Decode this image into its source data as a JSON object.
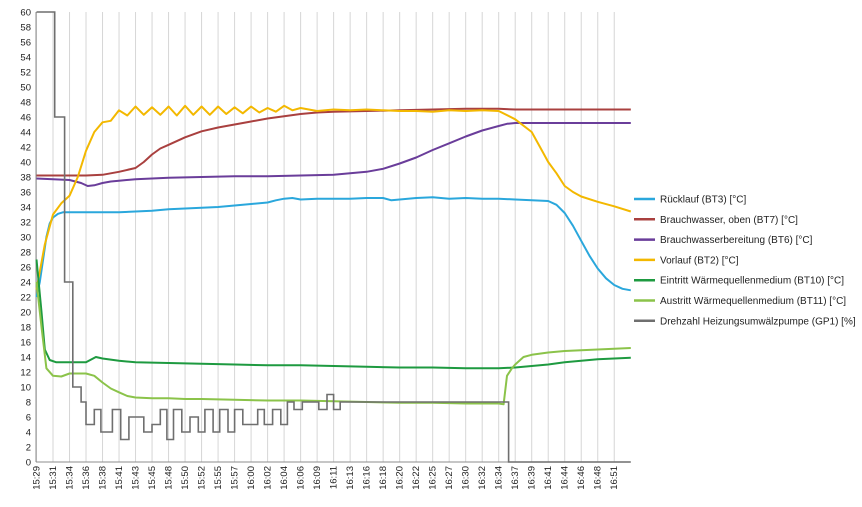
{
  "chart_data": {
    "type": "line",
    "title": "",
    "xlabel": "",
    "ylabel": "",
    "ylim": [
      0,
      60
    ],
    "y_ticks": [
      0,
      2,
      4,
      6,
      8,
      10,
      12,
      14,
      16,
      18,
      20,
      22,
      24,
      26,
      28,
      30,
      32,
      34,
      36,
      38,
      40,
      42,
      44,
      46,
      48,
      50,
      52,
      54,
      56,
      58,
      60
    ],
    "grid": "vertical",
    "legend_position": "right",
    "x_tick_labels": [
      "15:29",
      "15:31",
      "15:34",
      "15:36",
      "15:38",
      "15:41",
      "15:43",
      "15:45",
      "15:48",
      "15:50",
      "15:52",
      "15:55",
      "15:57",
      "16:00",
      "16:02",
      "16:04",
      "16:06",
      "16:09",
      "16:11",
      "16:13",
      "16:16",
      "16:18",
      "16:20",
      "16:22",
      "16:25",
      "16:27",
      "16:30",
      "16:32",
      "16:34",
      "16:37",
      "16:39",
      "16:41",
      "16:44",
      "16:46",
      "16:48",
      "16:51"
    ],
    "series": [
      {
        "name": "Rücklauf (BT3) [°C]",
        "color": "#2aa7dc",
        "points": [
          [
            0,
            22
          ],
          [
            0.2,
            24
          ],
          [
            0.4,
            27
          ],
          [
            0.6,
            30
          ],
          [
            0.8,
            31.8
          ],
          [
            1,
            32.6
          ],
          [
            1.3,
            33.1
          ],
          [
            1.6,
            33.3
          ],
          [
            2,
            33.3
          ],
          [
            3,
            33.3
          ],
          [
            4,
            33.3
          ],
          [
            5,
            33.3
          ],
          [
            6,
            33.4
          ],
          [
            7,
            33.5
          ],
          [
            8,
            33.7
          ],
          [
            9,
            33.8
          ],
          [
            10,
            33.9
          ],
          [
            11,
            34
          ],
          [
            12,
            34.2
          ],
          [
            13,
            34.4
          ],
          [
            14,
            34.6
          ],
          [
            14.5,
            34.9
          ],
          [
            15,
            35.1
          ],
          [
            15.5,
            35.2
          ],
          [
            16,
            35
          ],
          [
            17,
            35.1
          ],
          [
            18,
            35.1
          ],
          [
            19,
            35.1
          ],
          [
            20,
            35.2
          ],
          [
            21,
            35.2
          ],
          [
            21.5,
            34.9
          ],
          [
            22,
            35
          ],
          [
            23,
            35.2
          ],
          [
            24,
            35.3
          ],
          [
            25,
            35.1
          ],
          [
            26,
            35.2
          ],
          [
            27,
            35.1
          ],
          [
            28,
            35.1
          ],
          [
            29,
            35
          ],
          [
            30,
            34.9
          ],
          [
            31,
            34.8
          ],
          [
            31.5,
            34.3
          ],
          [
            32,
            33.2
          ],
          [
            32.5,
            31.5
          ],
          [
            33,
            29.5
          ],
          [
            33.5,
            27.5
          ],
          [
            34,
            25.8
          ],
          [
            34.5,
            24.5
          ],
          [
            35,
            23.6
          ],
          [
            35.5,
            23.1
          ],
          [
            36,
            22.9
          ]
        ]
      },
      {
        "name": "Brauchwasser, oben (BT7) [°C]",
        "color": "#a9403f",
        "points": [
          [
            0,
            38.2
          ],
          [
            2,
            38.2
          ],
          [
            3,
            38.2
          ],
          [
            4,
            38.3
          ],
          [
            5,
            38.7
          ],
          [
            6,
            39.2
          ],
          [
            6.5,
            40
          ],
          [
            7,
            41
          ],
          [
            7.5,
            41.8
          ],
          [
            8,
            42.3
          ],
          [
            9,
            43.3
          ],
          [
            10,
            44.1
          ],
          [
            11,
            44.6
          ],
          [
            12,
            45
          ],
          [
            13,
            45.4
          ],
          [
            14,
            45.8
          ],
          [
            15,
            46.1
          ],
          [
            16,
            46.4
          ],
          [
            17,
            46.6
          ],
          [
            18,
            46.7
          ],
          [
            20,
            46.8
          ],
          [
            22,
            46.9
          ],
          [
            24,
            47
          ],
          [
            26,
            47.1
          ],
          [
            27,
            47.1
          ],
          [
            28,
            47.1
          ],
          [
            29,
            47
          ],
          [
            36,
            47
          ]
        ]
      },
      {
        "name": "Brauchwasserbereitung (BT6) [°C]",
        "color": "#6a3d9a",
        "points": [
          [
            0,
            37.8
          ],
          [
            1,
            37.7
          ],
          [
            2,
            37.6
          ],
          [
            2.7,
            37.2
          ],
          [
            3.1,
            36.8
          ],
          [
            3.5,
            36.9
          ],
          [
            4,
            37.2
          ],
          [
            4.5,
            37.4
          ],
          [
            5,
            37.5
          ],
          [
            6,
            37.7
          ],
          [
            7,
            37.8
          ],
          [
            8,
            37.9
          ],
          [
            10,
            38
          ],
          [
            12,
            38.1
          ],
          [
            14,
            38.1
          ],
          [
            16,
            38.2
          ],
          [
            18,
            38.3
          ],
          [
            19,
            38.5
          ],
          [
            20,
            38.7
          ],
          [
            21,
            39.1
          ],
          [
            22,
            39.8
          ],
          [
            23,
            40.6
          ],
          [
            24,
            41.6
          ],
          [
            25,
            42.5
          ],
          [
            26,
            43.4
          ],
          [
            27,
            44.2
          ],
          [
            28,
            44.8
          ],
          [
            28.5,
            45.1
          ],
          [
            29,
            45.2
          ],
          [
            30,
            45.2
          ],
          [
            36,
            45.2
          ]
        ]
      },
      {
        "name": "Vorlauf (BT2) [°C]",
        "color": "#f3b800",
        "points": [
          [
            0,
            23
          ],
          [
            0.5,
            29
          ],
          [
            1,
            33
          ],
          [
            1.5,
            34.5
          ],
          [
            2,
            35.5
          ],
          [
            2.5,
            38
          ],
          [
            3,
            41.5
          ],
          [
            3.5,
            44
          ],
          [
            4,
            45.3
          ],
          [
            4.5,
            45.5
          ],
          [
            5,
            46.9
          ],
          [
            5.5,
            46.2
          ],
          [
            6,
            47.4
          ],
          [
            6.5,
            46.3
          ],
          [
            7,
            47.3
          ],
          [
            7.5,
            46.3
          ],
          [
            8,
            47.4
          ],
          [
            8.5,
            46.2
          ],
          [
            9,
            47.5
          ],
          [
            9.5,
            46.3
          ],
          [
            10,
            47.4
          ],
          [
            10.5,
            46.3
          ],
          [
            11,
            47.4
          ],
          [
            11.5,
            46.4
          ],
          [
            12,
            47.3
          ],
          [
            12.5,
            46.5
          ],
          [
            13,
            47.4
          ],
          [
            13.5,
            46.6
          ],
          [
            14,
            47.2
          ],
          [
            14.5,
            46.7
          ],
          [
            15,
            47.5
          ],
          [
            15.5,
            46.9
          ],
          [
            16,
            47.2
          ],
          [
            17,
            46.8
          ],
          [
            18,
            47
          ],
          [
            19,
            46.9
          ],
          [
            20,
            47
          ],
          [
            21,
            46.9
          ],
          [
            22,
            46.8
          ],
          [
            23,
            46.8
          ],
          [
            24,
            46.7
          ],
          [
            25,
            46.9
          ],
          [
            26,
            46.8
          ],
          [
            27,
            46.9
          ],
          [
            28,
            46.8
          ],
          [
            29,
            45.7
          ],
          [
            30,
            44
          ],
          [
            30.5,
            42
          ],
          [
            31,
            40
          ],
          [
            31.5,
            38.5
          ],
          [
            32,
            36.8
          ],
          [
            32.5,
            36
          ],
          [
            33,
            35.4
          ],
          [
            34,
            34.7
          ],
          [
            35,
            34.1
          ],
          [
            36,
            33.4
          ]
        ]
      },
      {
        "name": "Eintritt Wärmequellenmedium (BT10) [°C]",
        "color": "#1e9a40",
        "points": [
          [
            0,
            27
          ],
          [
            0.3,
            20
          ],
          [
            0.5,
            15
          ],
          [
            0.8,
            13.6
          ],
          [
            1.2,
            13.3
          ],
          [
            2,
            13.3
          ],
          [
            3,
            13.3
          ],
          [
            3.6,
            14
          ],
          [
            4,
            13.8
          ],
          [
            5,
            13.5
          ],
          [
            6,
            13.3
          ],
          [
            8,
            13.2
          ],
          [
            10,
            13.1
          ],
          [
            12,
            13
          ],
          [
            14,
            12.9
          ],
          [
            16,
            12.9
          ],
          [
            18,
            12.8
          ],
          [
            20,
            12.7
          ],
          [
            22,
            12.6
          ],
          [
            24,
            12.6
          ],
          [
            26,
            12.5
          ],
          [
            28,
            12.5
          ],
          [
            29,
            12.6
          ],
          [
            30,
            12.8
          ],
          [
            31,
            13
          ],
          [
            32,
            13.3
          ],
          [
            33,
            13.5
          ],
          [
            34,
            13.7
          ],
          [
            35,
            13.8
          ],
          [
            36,
            13.9
          ]
        ]
      },
      {
        "name": "Austritt Wärmequellenmedium (BT11) [°C]",
        "color": "#8bc34a",
        "points": [
          [
            0,
            24
          ],
          [
            0.3,
            18
          ],
          [
            0.6,
            12.5
          ],
          [
            1,
            11.5
          ],
          [
            1.5,
            11.4
          ],
          [
            2,
            11.8
          ],
          [
            3,
            11.8
          ],
          [
            3.5,
            11.5
          ],
          [
            4,
            10.6
          ],
          [
            4.5,
            9.8
          ],
          [
            5,
            9.3
          ],
          [
            5.5,
            8.8
          ],
          [
            6,
            8.6
          ],
          [
            7,
            8.5
          ],
          [
            8,
            8.5
          ],
          [
            9,
            8.4
          ],
          [
            10,
            8.4
          ],
          [
            12,
            8.3
          ],
          [
            14,
            8.2
          ],
          [
            16,
            8.2
          ],
          [
            18,
            8.1
          ],
          [
            20,
            8
          ],
          [
            22,
            7.9
          ],
          [
            24,
            7.9
          ],
          [
            26,
            7.8
          ],
          [
            28,
            7.8
          ],
          [
            28.3,
            7.7
          ],
          [
            28.5,
            11.5
          ],
          [
            28.8,
            12.5
          ],
          [
            29,
            13
          ],
          [
            29.5,
            14
          ],
          [
            30,
            14.3
          ],
          [
            31,
            14.6
          ],
          [
            32,
            14.8
          ],
          [
            33,
            14.9
          ],
          [
            34,
            15
          ],
          [
            35,
            15.1
          ],
          [
            36,
            15.2
          ]
        ]
      },
      {
        "name": "Drehzahl Heizungsumwälzpumpe (GP1) [%]",
        "color": "#6f6f6f",
        "step": true,
        "points": [
          [
            0,
            60
          ],
          [
            1.1,
            60
          ],
          [
            1.1,
            46
          ],
          [
            1.7,
            46
          ],
          [
            1.7,
            24
          ],
          [
            2.2,
            24
          ],
          [
            2.2,
            10
          ],
          [
            2.7,
            10
          ],
          [
            2.7,
            8
          ],
          [
            3,
            8
          ],
          [
            3,
            5
          ],
          [
            3.5,
            5
          ],
          [
            3.5,
            7
          ],
          [
            3.9,
            7
          ],
          [
            3.9,
            4
          ],
          [
            4.6,
            4
          ],
          [
            4.6,
            7
          ],
          [
            5.1,
            7
          ],
          [
            5.1,
            3
          ],
          [
            5.6,
            3
          ],
          [
            5.6,
            6
          ],
          [
            6.5,
            6
          ],
          [
            6.5,
            4
          ],
          [
            7,
            4
          ],
          [
            7,
            5
          ],
          [
            7.5,
            5
          ],
          [
            7.5,
            7
          ],
          [
            7.9,
            7
          ],
          [
            7.9,
            3
          ],
          [
            8.3,
            3
          ],
          [
            8.3,
            7
          ],
          [
            8.8,
            7
          ],
          [
            8.8,
            4
          ],
          [
            9.3,
            4
          ],
          [
            9.3,
            6
          ],
          [
            9.8,
            6
          ],
          [
            9.8,
            4
          ],
          [
            10.2,
            4
          ],
          [
            10.2,
            7
          ],
          [
            10.7,
            7
          ],
          [
            10.7,
            4
          ],
          [
            11.1,
            4
          ],
          [
            11.1,
            7
          ],
          [
            11.6,
            7
          ],
          [
            11.6,
            4
          ],
          [
            12,
            4
          ],
          [
            12,
            7
          ],
          [
            12.5,
            7
          ],
          [
            12.5,
            5
          ],
          [
            13.4,
            5
          ],
          [
            13.4,
            7
          ],
          [
            13.8,
            7
          ],
          [
            13.8,
            5
          ],
          [
            14.3,
            5
          ],
          [
            14.3,
            7
          ],
          [
            14.8,
            7
          ],
          [
            14.8,
            5
          ],
          [
            15.2,
            5
          ],
          [
            15.2,
            8
          ],
          [
            15.6,
            8
          ],
          [
            15.6,
            7
          ],
          [
            16.1,
            7
          ],
          [
            16.1,
            8
          ],
          [
            17.1,
            8
          ],
          [
            17.1,
            7
          ],
          [
            17.6,
            7
          ],
          [
            17.6,
            9
          ],
          [
            18,
            9
          ],
          [
            18,
            7
          ],
          [
            18.4,
            7
          ],
          [
            18.4,
            8
          ],
          [
            28.6,
            8
          ],
          [
            28.6,
            0
          ],
          [
            36,
            0
          ]
        ]
      }
    ]
  }
}
